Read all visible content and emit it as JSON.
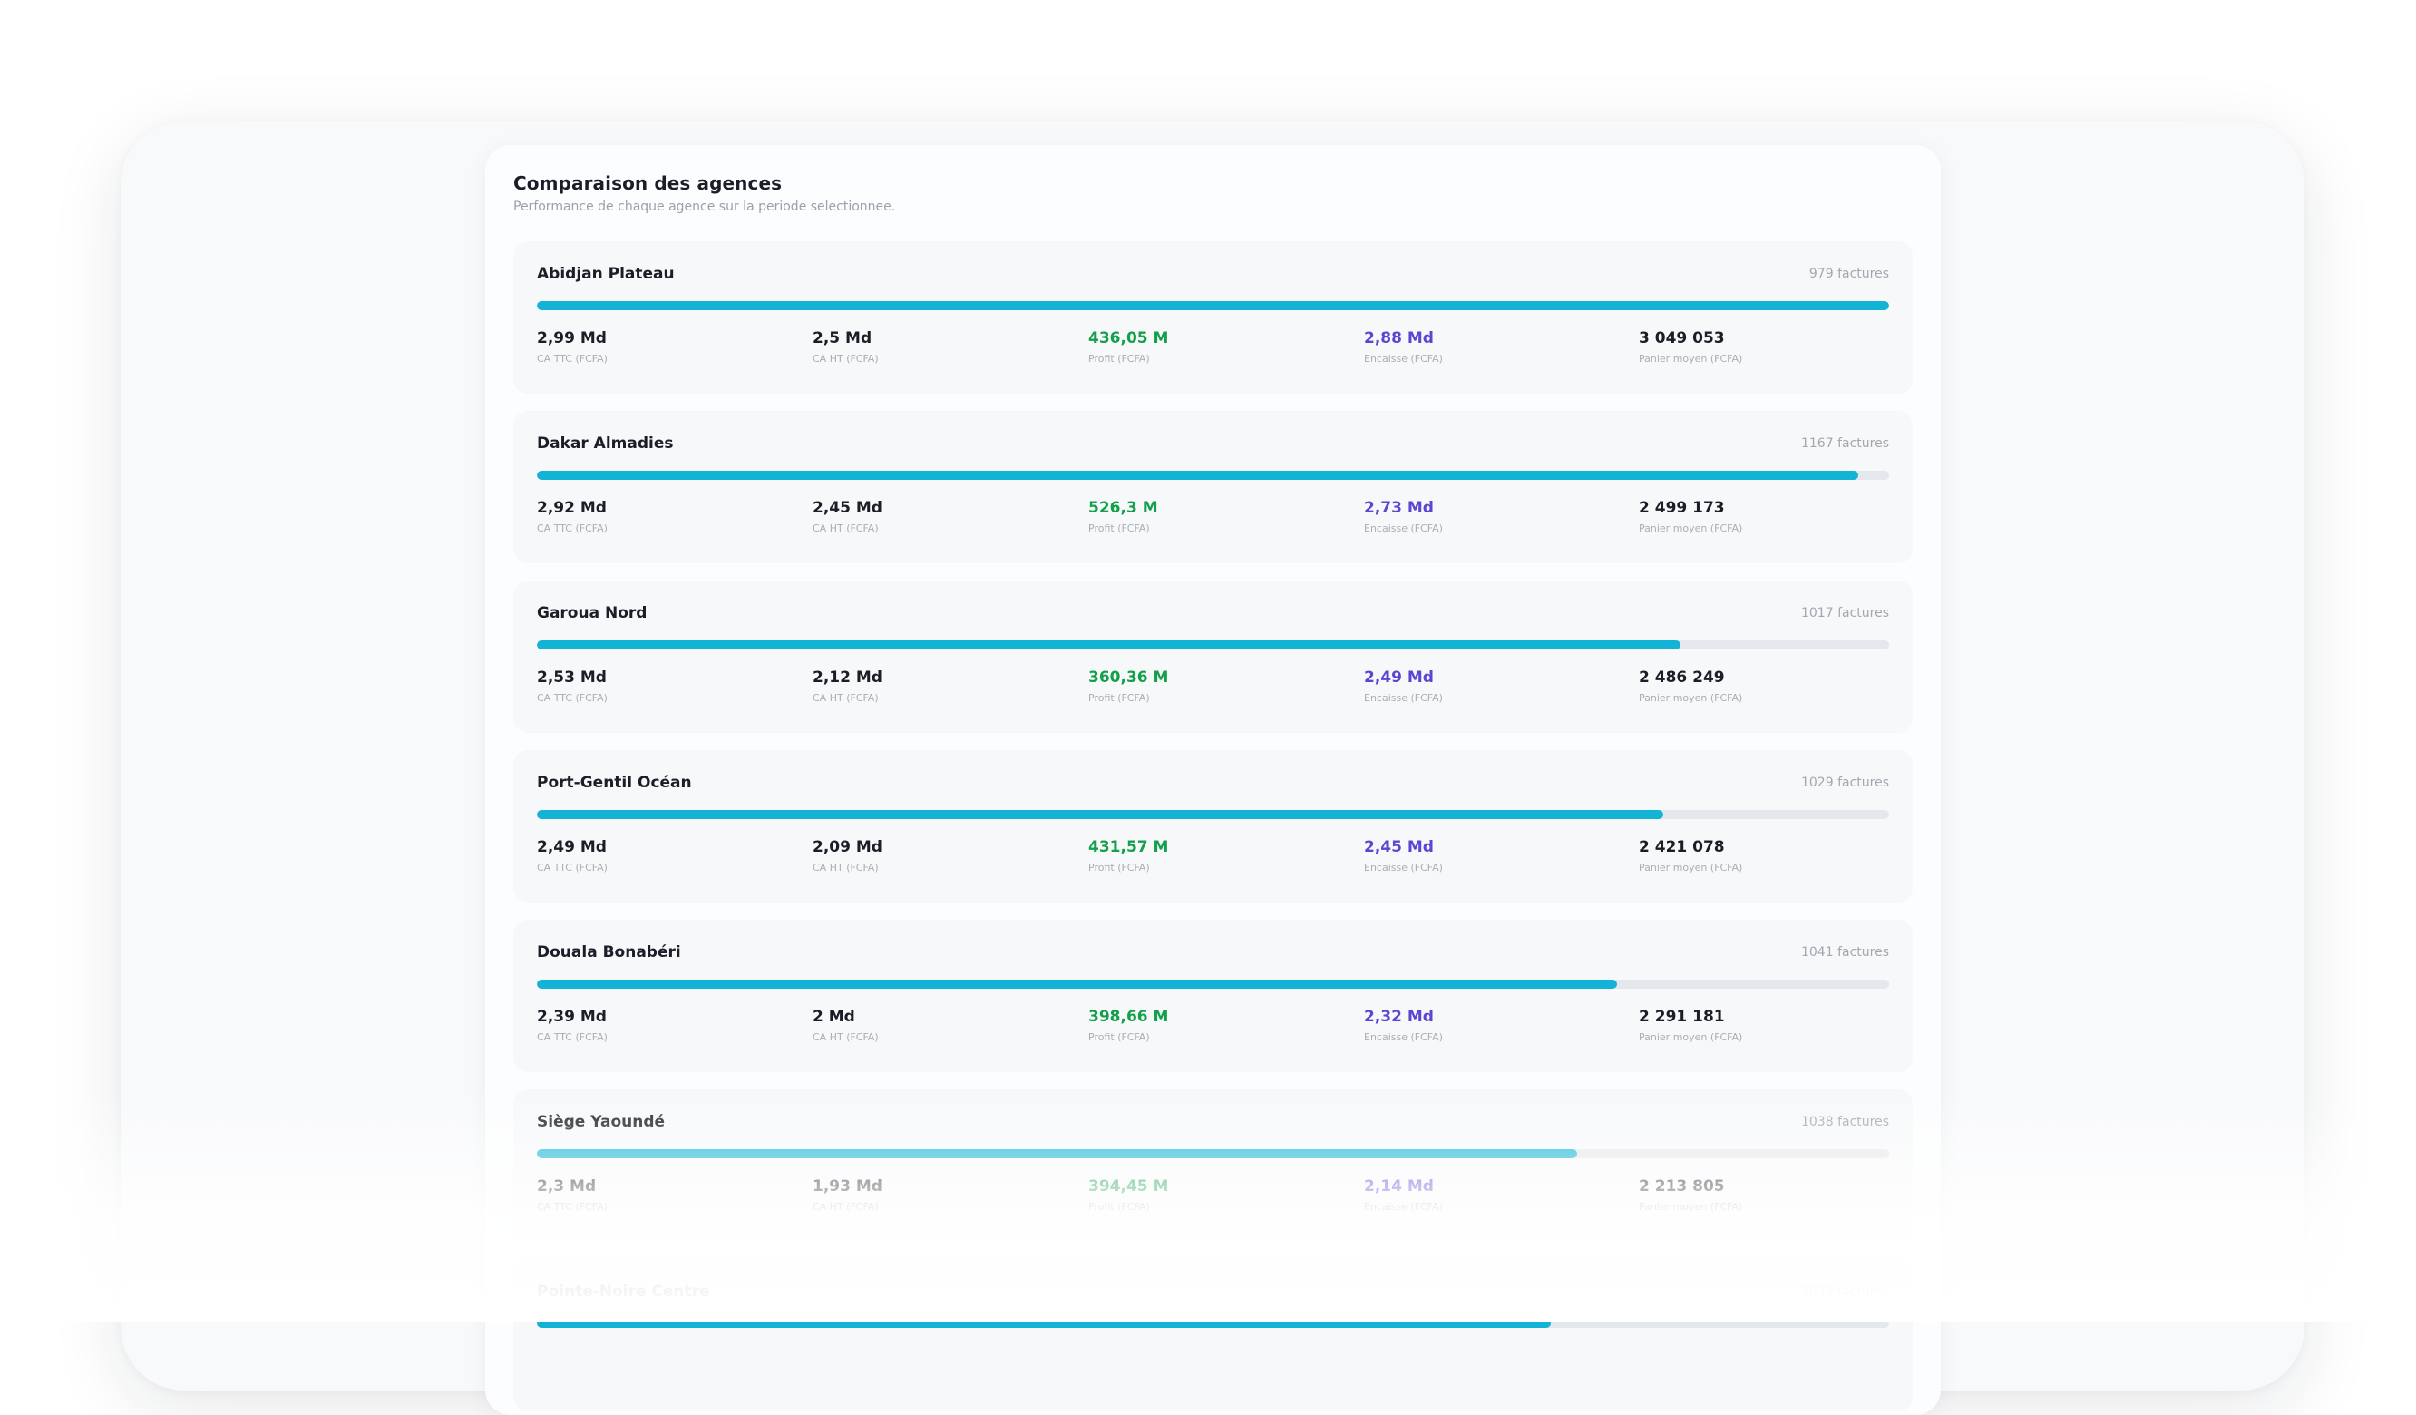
{
  "panel": {
    "title": "Comparaison des agences",
    "subtitle": "Performance de chaque agence sur la periode selectionnee."
  },
  "metric_labels": {
    "ca_ttc": "CA TTC (FCFA)",
    "ca_ht": "CA HT (FCFA)",
    "profit": "Profit (FCFA)",
    "encaisse": "Encaisse (FCFA)",
    "panier": "Panier moyen (FCFA)"
  },
  "colors": {
    "bar": "#12b3d4",
    "profit": "#12a04a",
    "encaisse": "#5a46d2"
  },
  "agencies": [
    {
      "name": "Abidjan Plateau",
      "invoices": "979 factures",
      "progress": 1.0,
      "ca_ttc": "2,99 Md",
      "ca_ht": "2,5 Md",
      "profit": "436,05 M",
      "encaisse": "2,88 Md",
      "panier": "3 049 053"
    },
    {
      "name": "Dakar Almadies",
      "invoices": "1167 factures",
      "progress": 0.977,
      "ca_ttc": "2,92 Md",
      "ca_ht": "2,45 Md",
      "profit": "526,3 M",
      "encaisse": "2,73 Md",
      "panier": "2 499 173"
    },
    {
      "name": "Garoua Nord",
      "invoices": "1017 factures",
      "progress": 0.846,
      "ca_ttc": "2,53 Md",
      "ca_ht": "2,12 Md",
      "profit": "360,36 M",
      "encaisse": "2,49 Md",
      "panier": "2 486 249"
    },
    {
      "name": "Port-Gentil Océan",
      "invoices": "1029 factures",
      "progress": 0.833,
      "ca_ttc": "2,49 Md",
      "ca_ht": "2,09 Md",
      "profit": "431,57 M",
      "encaisse": "2,45 Md",
      "panier": "2 421 078"
    },
    {
      "name": "Douala Bonabéri",
      "invoices": "1041 factures",
      "progress": 0.799,
      "ca_ttc": "2,39 Md",
      "ca_ht": "2 Md",
      "profit": "398,66 M",
      "encaisse": "2,32 Md",
      "panier": "2 291 181"
    },
    {
      "name": "Siège Yaoundé",
      "invoices": "1038 factures",
      "progress": 0.769,
      "ca_ttc": "2,3 Md",
      "ca_ht": "1,93 Md",
      "profit": "394,45 M",
      "encaisse": "2,14 Md",
      "panier": "2 213 805"
    },
    {
      "name": "Pointe-Noire Centre",
      "invoices": "1030 factures",
      "progress": 0.75,
      "ca_ttc": "",
      "ca_ht": "",
      "profit": "",
      "encaisse": "",
      "panier": ""
    }
  ]
}
